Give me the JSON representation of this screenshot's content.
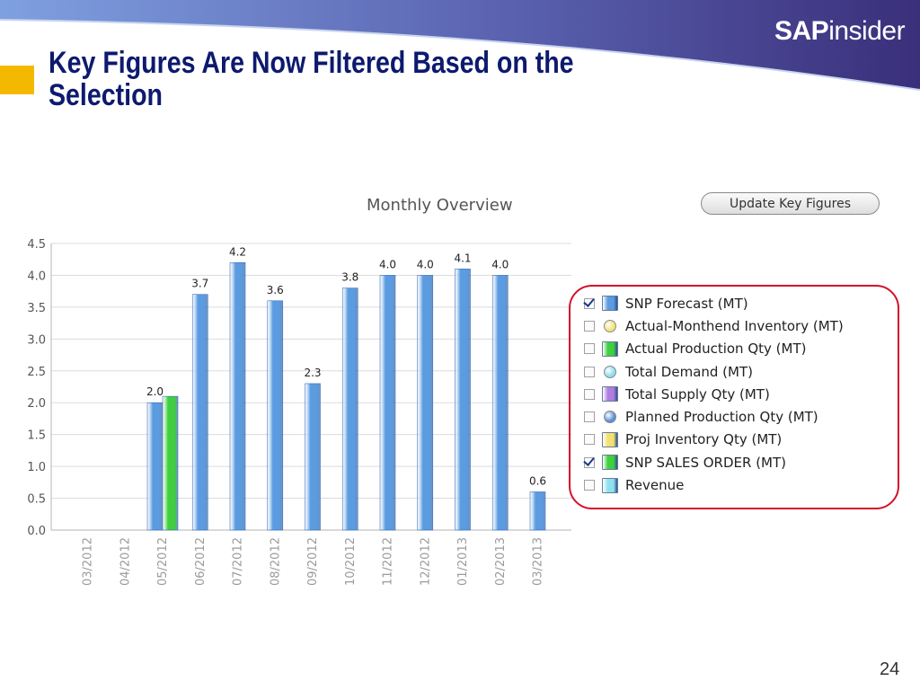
{
  "brand": {
    "bold": "SAP",
    "light": "insider"
  },
  "slide_title": "Key Figures Are Now Filtered Based on the Selection",
  "update_button_label": "Update Key Figures",
  "page_number": "24",
  "colors": {
    "header_dark": "#3a2f7a",
    "header_light": "#7fa0e0",
    "title_text": "#0d1a6e",
    "accent": "#f5b800",
    "selection_outline": "#d3122a",
    "snp_forecast": "#5b9be0",
    "snp_sales_order": "#3fcf3f"
  },
  "legend": [
    {
      "label": "SNP Forecast (MT)",
      "checked": true,
      "shape": "bar",
      "color": "#5b9be0"
    },
    {
      "label": "Actual-Monthend Inventory (MT)",
      "checked": false,
      "shape": "dot",
      "color": "#f2e27a"
    },
    {
      "label": "Actual Production Qty (MT)",
      "checked": false,
      "shape": "bar",
      "color": "#3fcf3f"
    },
    {
      "label": "Total Demand (MT)",
      "checked": false,
      "shape": "dot",
      "color": "#8fdcf0"
    },
    {
      "label": "Total Supply Qty (MT)",
      "checked": false,
      "shape": "bar",
      "color": "#b07ce0"
    },
    {
      "label": "Planned Production Qty (MT)",
      "checked": false,
      "shape": "dot",
      "color": "#5a8fd8"
    },
    {
      "label": "Proj Inventory Qty (MT)",
      "checked": false,
      "shape": "bar",
      "color": "#f2e070"
    },
    {
      "label": "SNP SALES ORDER (MT)",
      "checked": true,
      "shape": "bar",
      "color": "#3fcf3f"
    },
    {
      "label": "Revenue",
      "checked": false,
      "shape": "bar",
      "color": "#8ee0ee"
    }
  ],
  "chart_data": {
    "type": "bar",
    "title": "Monthly Overview",
    "xlabel": "",
    "ylabel": "",
    "ylim": [
      0,
      4.5
    ],
    "yticks": [
      "0.0",
      "0.5",
      "1.0",
      "1.5",
      "2.0",
      "2.5",
      "3.0",
      "3.5",
      "4.0",
      "4.5"
    ],
    "grid": true,
    "categories": [
      "03/2012",
      "04/2012",
      "05/2012",
      "06/2012",
      "07/2012",
      "08/2012",
      "09/2012",
      "10/2012",
      "11/2012",
      "12/2012",
      "01/2013",
      "02/2013",
      "03/2013"
    ],
    "series": [
      {
        "name": "SNP Forecast (MT)",
        "color": "#5b9be0",
        "values": [
          null,
          null,
          2.0,
          3.7,
          4.2,
          3.6,
          2.3,
          3.8,
          4.0,
          4.0,
          4.1,
          4.0,
          0.6
        ],
        "labels": [
          "",
          "",
          "2.0",
          "3.7",
          "4.2",
          "3.6",
          "2.3",
          "3.8",
          "4.0",
          "4.0",
          "4.1",
          "4.0",
          "0.6"
        ]
      },
      {
        "name": "SNP SALES ORDER (MT)",
        "color": "#3fcf3f",
        "values": [
          null,
          null,
          2.1,
          null,
          null,
          null,
          null,
          null,
          null,
          null,
          null,
          null,
          null
        ],
        "labels": [
          "",
          "",
          "",
          "",
          "",
          "",
          "",
          "",
          "",
          "",
          "",
          "",
          ""
        ]
      }
    ]
  }
}
